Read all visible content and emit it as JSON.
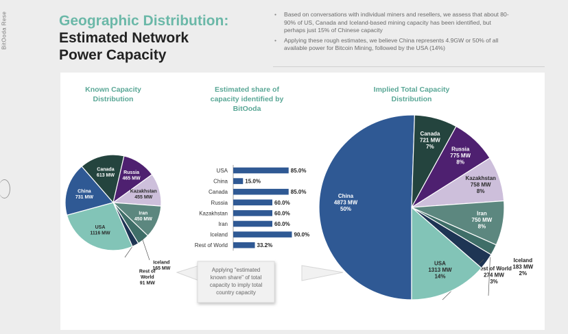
{
  "side_brand": "BitOoda Rese",
  "title_line1": "Geographic Distribution:",
  "title_line2": "Estimated Network",
  "title_line3": "Power Capacity",
  "notes": [
    "Based on  conversations with individual miners and resellers, we assess that about 80-90% of US, Canada and Iceland-based mining capacity has been identified, but perhaps just 15% of Chinese capacity",
    "Applying these rough estimates, we believe China represents 4.9GW or 50% of all available power for Bitcoin Mining, followed by the USA (14%)"
  ],
  "callout": [
    "Applying \"estimated",
    "known share\" of total",
    "capacity to imply total",
    "country capacity"
  ],
  "colors": {
    "China": "#2f5994",
    "Canada": "#24443e",
    "Russia": "#4e2070",
    "Kazakhstan": "#cdbfdb",
    "Iran": "#5c877f",
    "Iceland": "#3f6e68",
    "Rest of World": "#1e3554",
    "USA": "#82c4b7",
    "bar": "#2f5994",
    "title_accent": "#6bb8a8"
  },
  "chart_data": [
    {
      "type": "pie",
      "title": "Known Capacity Distribution",
      "title_lines": [
        "Known Capacity",
        "Distribution"
      ],
      "slices": [
        {
          "label": "China",
          "value": 731,
          "value_label": "731 MW"
        },
        {
          "label": "Canada",
          "value": 613,
          "value_label": "613 MW"
        },
        {
          "label": "Russia",
          "value": 465,
          "value_label": "465 MW"
        },
        {
          "label": "Kazakhstan",
          "value": 455,
          "value_label": "455 MW"
        },
        {
          "label": "Iran",
          "value": 450,
          "value_label": "450 MW"
        },
        {
          "label": "Iceland",
          "value": 165,
          "value_label": "165 MW"
        },
        {
          "label": "Rest of World",
          "value": 91,
          "value_label": "91 MW"
        },
        {
          "label": "USA",
          "value": 1116,
          "value_label": "1116 MW"
        }
      ]
    },
    {
      "type": "bar",
      "orientation": "horizontal",
      "title": "Estimated share of capacity identified by BitOoda",
      "title_lines": [
        "Estimated share of",
        "capacity identified by",
        "BitOoda"
      ],
      "categories": [
        "USA",
        "China",
        "Canada",
        "Russia",
        "Kazakhstan",
        "Iran",
        "Iceland",
        "Rest of World"
      ],
      "values": [
        85.0,
        15.0,
        85.0,
        60.0,
        60.0,
        60.0,
        90.0,
        33.2
      ],
      "value_labels": [
        "85.0%",
        "15.0%",
        "85.0%",
        "60.0%",
        "60.0%",
        "60.0%",
        "90.0%",
        "33.2%"
      ],
      "xlim": [
        0,
        100
      ]
    },
    {
      "type": "pie",
      "title": "Implied Total Capacity Distribution",
      "title_lines": [
        "Implied Total Capacity",
        "Distribution"
      ],
      "slices": [
        {
          "label": "China",
          "value": 4873,
          "value_label": "4873 MW",
          "pct_label": "50%"
        },
        {
          "label": "Canada",
          "value": 721,
          "value_label": "721 MW",
          "pct_label": "7%"
        },
        {
          "label": "Russia",
          "value": 775,
          "value_label": "775 MW",
          "pct_label": "8%"
        },
        {
          "label": "Kazakhstan",
          "value": 758,
          "value_label": "758 MW",
          "pct_label": "8%"
        },
        {
          "label": "Iran",
          "value": 750,
          "value_label": "750 MW",
          "pct_label": "8%"
        },
        {
          "label": "Iceland",
          "value": 183,
          "value_label": "183 MW",
          "pct_label": "2%"
        },
        {
          "label": "Rest of World",
          "value": 274,
          "value_label": "274 MW",
          "pct_label": "3%"
        },
        {
          "label": "USA",
          "value": 1313,
          "value_label": "1313 MW",
          "pct_label": "14%"
        }
      ]
    }
  ]
}
